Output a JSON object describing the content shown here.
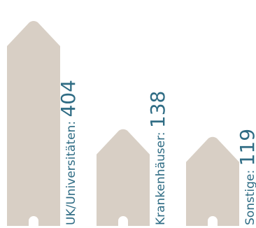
{
  "colors": {
    "house": "#d8cfc5",
    "text": "#2f6c84",
    "background": "#ffffff"
  },
  "chart_data": {
    "type": "bar",
    "title": "",
    "xlabel": "",
    "ylabel": "",
    "categories": [
      "UK/Universitäten",
      "Krankenhäuser",
      "Sonstige"
    ],
    "values": [
      404,
      138,
      119
    ],
    "label_separator": ": ",
    "ylim": [
      0,
      404
    ],
    "grid": false,
    "legend": "none",
    "mark_shape": "house-icon"
  }
}
